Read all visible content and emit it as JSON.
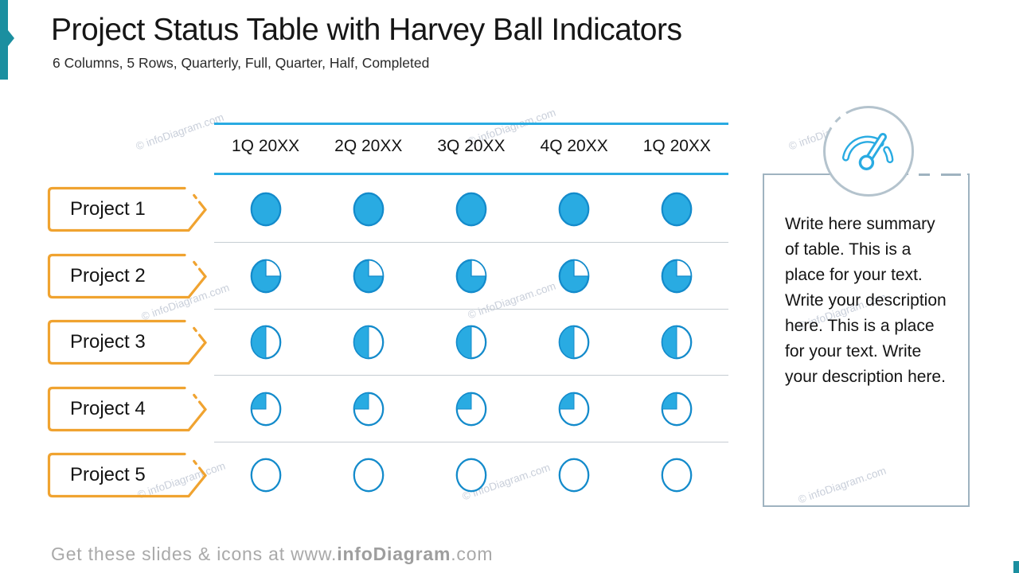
{
  "slide": {
    "title": "Project Status Table with Harvey Ball Indicators",
    "subtitle": "6 Columns, 5 Rows, Quarterly, Full, Quarter, Half, Completed"
  },
  "colors": {
    "harvey_fill": "#29ABE2",
    "harvey_stroke": "#148BCB",
    "header_line_blue": "#29ABE2",
    "label_orange": "#F0A330",
    "accent_teal": "#1B8FA0",
    "summary_border_gray": "#9FB3C0",
    "icon_circle_gray": "#B4C3CD",
    "separator_gray": "#C6CDD3",
    "footer_gray": "#A9A9A9"
  },
  "table": {
    "columns": [
      "1Q 20XX",
      "2Q 20XX",
      "3Q 20XX",
      "4Q 20XX",
      "1Q 20XX"
    ],
    "rows": [
      {
        "label": "Project 1",
        "cells": [
          "full",
          "full",
          "full",
          "full",
          "full"
        ]
      },
      {
        "label": "Project 2",
        "cells": [
          "three_quarter",
          "three_quarter",
          "three_quarter",
          "three_quarter",
          "three_quarter"
        ]
      },
      {
        "label": "Project 3",
        "cells": [
          "half",
          "half",
          "half",
          "half",
          "half"
        ]
      },
      {
        "label": "Project 4",
        "cells": [
          "quarter",
          "quarter",
          "quarter",
          "quarter",
          "quarter"
        ]
      },
      {
        "label": "Project 5",
        "cells": [
          "empty",
          "empty",
          "empty",
          "empty",
          "empty"
        ]
      }
    ],
    "status_fractions": {
      "full": 1,
      "three_quarter": 0.75,
      "half": 0.5,
      "quarter": 0.25,
      "empty": 0
    }
  },
  "summary": {
    "icon": "speedometer-gauge-icon",
    "text": "Write here summary of table. This is a place for your text. Write your description here. This is a place for your text. Write your description here."
  },
  "footer": {
    "prefix": "Get these slides & icons at www.",
    "brand": "infoDiagram",
    "suffix": ".com"
  },
  "watermark": {
    "text": "© infoDiagram.com"
  },
  "chart_data": {
    "type": "table",
    "title": "Project Status Table with Harvey Ball Indicators",
    "columns": [
      "1Q 20XX",
      "2Q 20XX",
      "3Q 20XX",
      "4Q 20XX",
      "1Q 20XX"
    ],
    "rows": [
      {
        "name": "Project 1",
        "statuses": [
          "full",
          "full",
          "full",
          "full",
          "full"
        ],
        "fractions": [
          1,
          1,
          1,
          1,
          1
        ]
      },
      {
        "name": "Project 2",
        "statuses": [
          "three_quarter",
          "three_quarter",
          "three_quarter",
          "three_quarter",
          "three_quarter"
        ],
        "fractions": [
          0.75,
          0.75,
          0.75,
          0.75,
          0.75
        ]
      },
      {
        "name": "Project 3",
        "statuses": [
          "half",
          "half",
          "half",
          "half",
          "half"
        ],
        "fractions": [
          0.5,
          0.5,
          0.5,
          0.5,
          0.5
        ]
      },
      {
        "name": "Project 4",
        "statuses": [
          "quarter",
          "quarter",
          "quarter",
          "quarter",
          "quarter"
        ],
        "fractions": [
          0.25,
          0.25,
          0.25,
          0.25,
          0.25
        ]
      },
      {
        "name": "Project 5",
        "statuses": [
          "empty",
          "empty",
          "empty",
          "empty",
          "empty"
        ],
        "fractions": [
          0,
          0,
          0,
          0,
          0
        ]
      }
    ],
    "legend": "Harvey balls: full = completed, three-quarter, half, quarter, empty"
  }
}
